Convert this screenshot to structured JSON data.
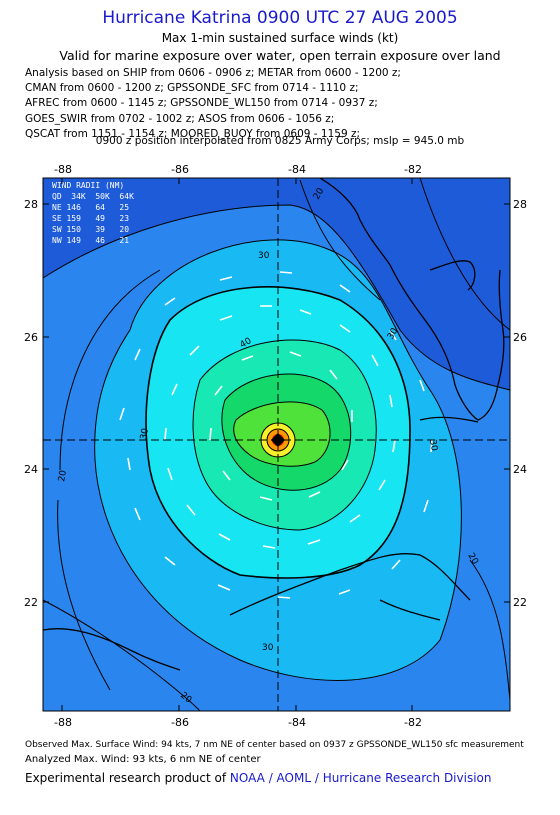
{
  "header": {
    "title": "Hurricane Katrina 0900 UTC 27 AUG 2005",
    "subtitle": "Max 1-min sustained surface winds (kt)",
    "validity": "Valid for marine exposure over water, open terrain exposure over land"
  },
  "analysis_lines": [
    "Analysis based on  SHIP from 0606 - 0906 z;  METAR from 0600 - 1200 z;",
    "CMAN from 0600 - 1200 z;  GPSSONDE_SFC from 0714 - 1110 z;",
    "AFREC from 0600 - 1145 z;  GPSSONDE_WL150 from 0714 - 0937 z;",
    "GOES_SWIR from 0702 - 1002 z;  ASOS from 0606 - 1056 z;",
    "QSCAT from 1151 - 1154 z;  MOORED_BUOY from 0609 - 1159 z;"
  ],
  "position_note": "0900 z position interpolated from 0825 Army Corps; mslp = 945.0 mb",
  "map": {
    "x_ticks": [
      "-88",
      "-86",
      "-84",
      "-82"
    ],
    "y_ticks": [
      "28",
      "26",
      "24",
      "22"
    ],
    "contour_labels": [
      "20",
      "20",
      "30",
      "30",
      "30",
      "40",
      "30",
      "20",
      "20",
      "30"
    ],
    "wind_radii": {
      "header": "WIND RADII (NM)",
      "columns": "QD  34K  50K  64K",
      "rows": [
        "NE 146   64   25",
        "SE 159   49   23",
        "SW 150   39   20",
        "NW 149   46   21"
      ]
    },
    "colors": {
      "outer": "#1e5bd8",
      "band_20": "#2a86ee",
      "band_30": "#19b9f4",
      "band_40": "#17e6f2",
      "band_50": "#17e8b4",
      "band_60": "#14d86a",
      "band_70": "#4fe23a",
      "core_yellow": "#f6f02a",
      "core_orange": "#ff9900",
      "core_red": "#e01010"
    }
  },
  "footer": {
    "observed": "Observed Max. Surface Wind: 94 kts, 7 nm NE of center based on 0937 z GPSSONDE_WL150 sfc measurement",
    "analyzed": "Analyzed Max. Wind: 93 kts, 6 nm NE of center",
    "credit_prefix": "Experimental research product of ",
    "credit_link": "NOAA / AOML / Hurricane Research Division"
  }
}
